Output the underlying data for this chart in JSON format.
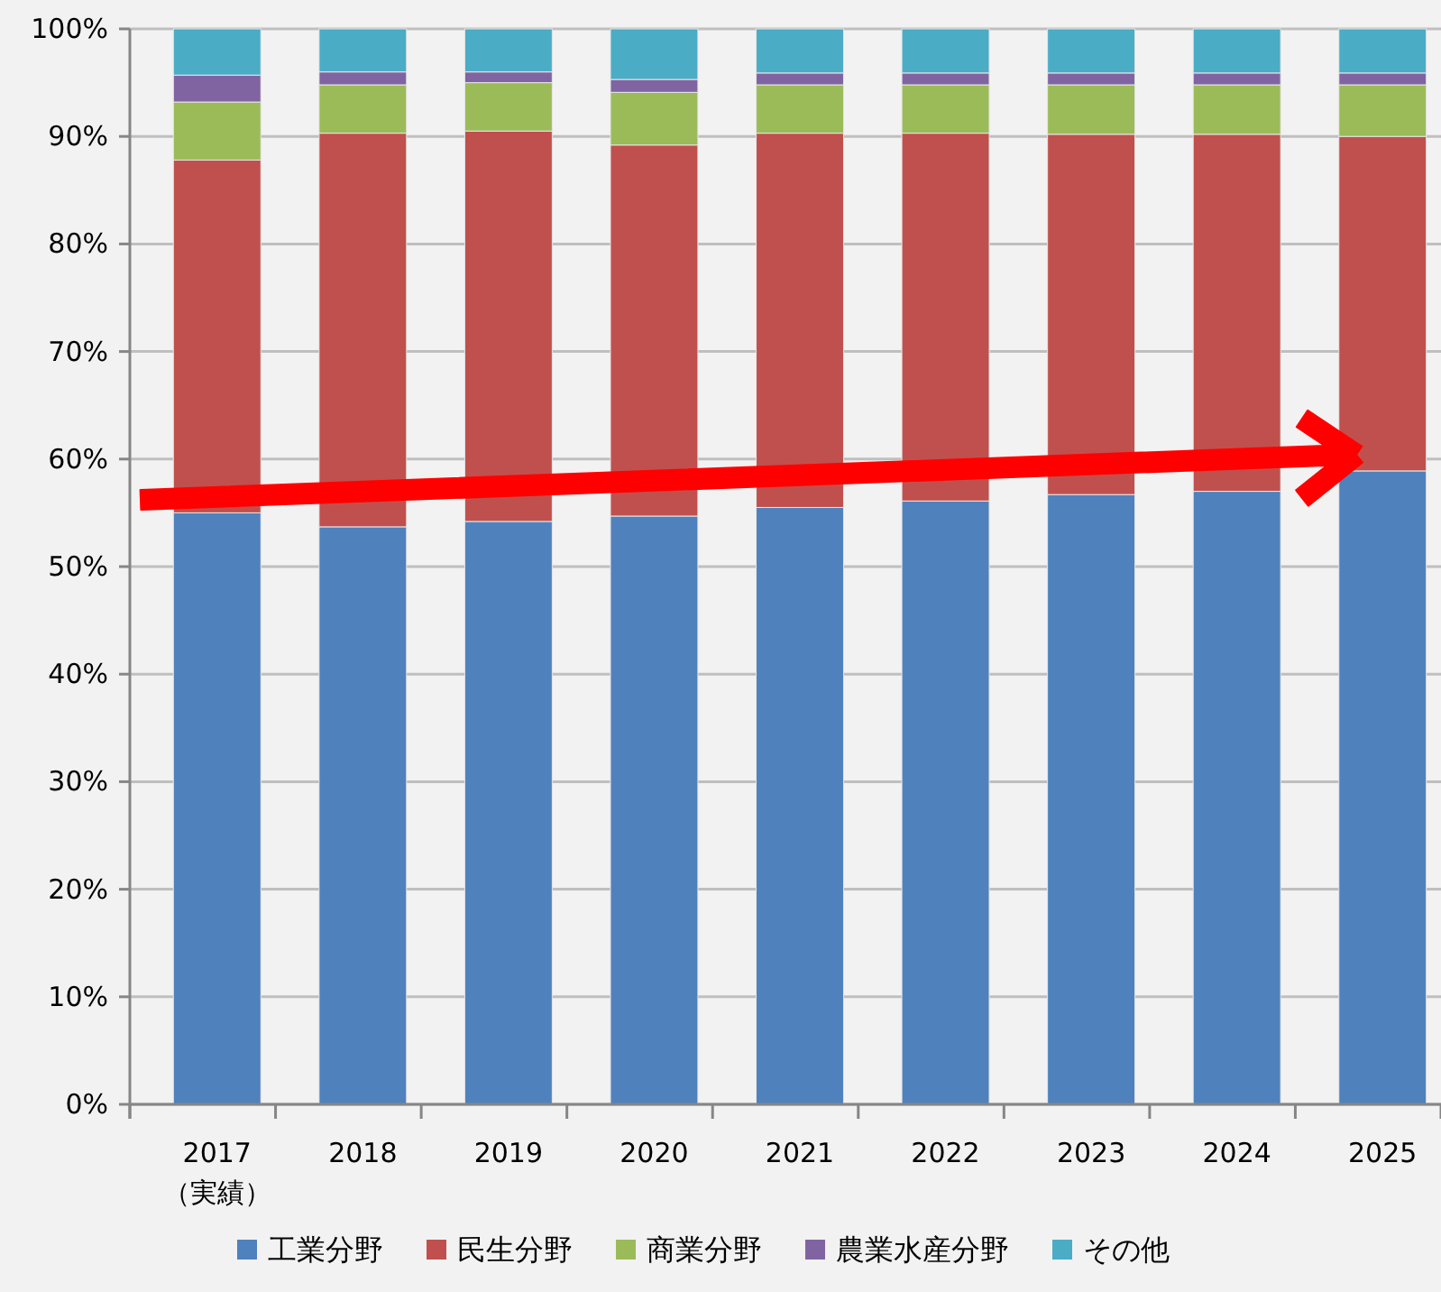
{
  "chart_data": {
    "type": "bar",
    "stacked": true,
    "categories": [
      "2017\n（実績）",
      "2018",
      "2019",
      "2020",
      "2021",
      "2022",
      "2023",
      "2024",
      "2025"
    ],
    "series": [
      {
        "name": "工業分野",
        "color": "#4f81bd",
        "values": [
          55.0,
          53.7,
          54.2,
          54.7,
          55.5,
          56.1,
          56.7,
          57.0,
          58.9
        ]
      },
      {
        "name": "民生分野",
        "color": "#c0504d",
        "values": [
          32.8,
          36.6,
          36.3,
          34.5,
          34.8,
          34.2,
          33.5,
          33.2,
          31.1
        ]
      },
      {
        "name": "商業分野",
        "color": "#9bbb59",
        "values": [
          5.4,
          4.5,
          4.5,
          4.9,
          4.5,
          4.5,
          4.6,
          4.6,
          4.8
        ]
      },
      {
        "name": "農業水産分野",
        "color": "#8064a2",
        "values": [
          2.5,
          1.2,
          1.0,
          1.2,
          1.1,
          1.1,
          1.1,
          1.1,
          1.1
        ]
      },
      {
        "name": "その他",
        "color": "#4bacc6",
        "values": [
          4.3,
          4.0,
          4.0,
          4.7,
          4.1,
          4.1,
          4.1,
          4.1,
          4.1
        ]
      }
    ],
    "ylim": [
      0,
      100
    ],
    "yticks": [
      {
        "value": 0,
        "label": "0%"
      },
      {
        "value": 10,
        "label": "10%"
      },
      {
        "value": 20,
        "label": "20%"
      },
      {
        "value": 30,
        "label": "30%"
      },
      {
        "value": 40,
        "label": "40%"
      },
      {
        "value": 50,
        "label": "50%"
      },
      {
        "value": 60,
        "label": "60%"
      },
      {
        "value": 70,
        "label": "70%"
      },
      {
        "value": 80,
        "label": "80%"
      },
      {
        "value": 90,
        "label": "90%"
      },
      {
        "value": 100,
        "label": "100%"
      }
    ],
    "grid": "y",
    "legend": "bottom"
  }
}
